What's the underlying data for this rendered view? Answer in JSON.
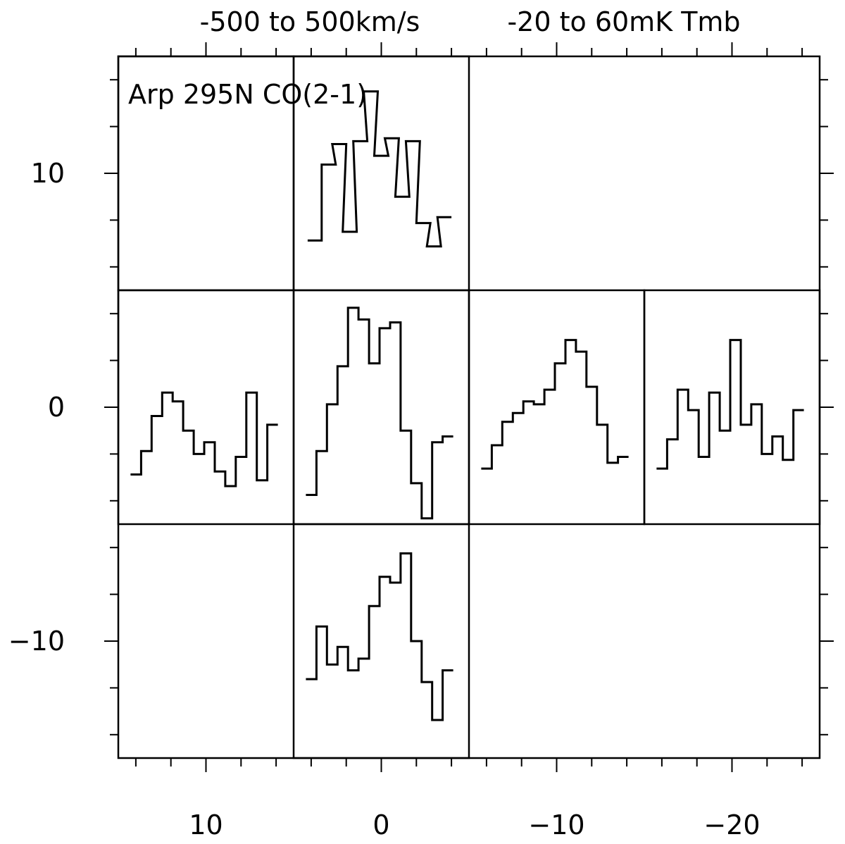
{
  "chart_data": {
    "type": "line",
    "title": "Arp 295N CO(2-1)",
    "header_velocity": "-500 to 500km/s",
    "header_temperature": "-20 to 60mK Tmb",
    "xlabel": "",
    "ylabel": "",
    "x_axis": {
      "ticks": [
        10,
        0,
        -10,
        -20
      ],
      "tick_labels": [
        "10",
        "0",
        "−10",
        "−20"
      ],
      "range": [
        15,
        -25
      ]
    },
    "y_axis": {
      "ticks": [
        10,
        0,
        -10
      ],
      "tick_labels": [
        "10",
        "0",
        "−10"
      ],
      "range": [
        -15,
        15
      ]
    },
    "spectrum_velocity_range_kms": [
      -500,
      500
    ],
    "spectrum_temperature_range_mK": [
      -20,
      60
    ],
    "spectra": [
      {
        "offset": [
          0,
          10
        ],
        "velocity_kms": [
          -380,
          -300,
          -240,
          -180,
          -120,
          -60,
          0,
          60,
          120,
          180,
          240,
          300,
          360
        ],
        "tmb_mK": [
          -3,
          23,
          30,
          0,
          31,
          48,
          26,
          32,
          12,
          31,
          3,
          -5,
          5
        ]
      },
      {
        "offset": [
          10,
          0
        ],
        "velocity_kms": [
          -400,
          -340,
          -280,
          -220,
          -160,
          -100,
          -40,
          20,
          80,
          140,
          200,
          260,
          320,
          380
        ],
        "tmb_mK": [
          -3,
          5,
          17,
          25,
          22,
          12,
          4,
          8,
          -2,
          -7,
          3,
          25,
          -5,
          14
        ]
      },
      {
        "offset": [
          0,
          0
        ],
        "velocity_kms": [
          -400,
          -340,
          -280,
          -220,
          -160,
          -100,
          -40,
          20,
          80,
          140,
          200,
          260,
          320,
          380
        ],
        "tmb_mK": [
          -10,
          5,
          21,
          34,
          54,
          50,
          35,
          47,
          49,
          12,
          -6,
          -18,
          8,
          10
        ]
      },
      {
        "offset": [
          -10,
          0
        ],
        "velocity_kms": [
          -400,
          -340,
          -280,
          -220,
          -160,
          -100,
          -40,
          20,
          80,
          140,
          200,
          260,
          320,
          380
        ],
        "tmb_mK": [
          -1,
          7,
          15,
          18,
          22,
          21,
          26,
          35,
          43,
          39,
          27,
          14,
          1,
          3
        ]
      },
      {
        "offset": [
          -20,
          0
        ],
        "velocity_kms": [
          -400,
          -340,
          -280,
          -220,
          -160,
          -100,
          -40,
          20,
          80,
          140,
          200,
          260,
          320,
          380
        ],
        "tmb_mK": [
          -1,
          9,
          26,
          19,
          3,
          25,
          12,
          43,
          14,
          21,
          4,
          10,
          2,
          19
        ]
      },
      {
        "offset": [
          0,
          -10
        ],
        "velocity_kms": [
          -400,
          -340,
          -280,
          -220,
          -160,
          -100,
          -40,
          20,
          80,
          140,
          200,
          260,
          320,
          380
        ],
        "tmb_mK": [
          7,
          25,
          12,
          18,
          10,
          14,
          32,
          42,
          40,
          50,
          20,
          6,
          -7,
          10
        ]
      }
    ]
  }
}
